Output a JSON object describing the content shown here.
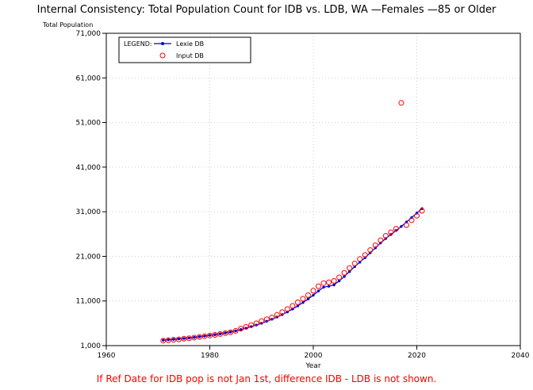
{
  "chart_data": {
    "type": "scatter",
    "title": "Internal Consistency: Total Population Count for IDB vs. LDB, WA —Females —85 or Older",
    "ylabel": "Total Population",
    "xlabel": "Year",
    "footnote": "If Ref Date for IDB pop is not Jan 1st, difference IDB - LDB is not shown.",
    "xlim": [
      1960,
      2040
    ],
    "ylim": [
      1000,
      71000
    ],
    "x_ticks": [
      1960,
      1980,
      2000,
      2020,
      2040
    ],
    "y_ticks": [
      1000,
      11000,
      21000,
      31000,
      41000,
      51000,
      61000,
      71000
    ],
    "x_tick_labels": [
      "1960",
      "1980",
      "2000",
      "2020",
      "2040"
    ],
    "y_tick_labels": [
      "1,000",
      "11,000",
      "21,000",
      "31,000",
      "41,000",
      "51,000",
      "61,000",
      "71,000"
    ],
    "grid": true,
    "legend": {
      "title": "LEGEND:",
      "placement": "top-left",
      "entries": [
        "Lexie DB",
        "Input DB"
      ]
    },
    "series": [
      {
        "name": "Lexie DB",
        "style": "line-with-dots",
        "color": "#0000cc",
        "x": [
          1971,
          1972,
          1973,
          1974,
          1975,
          1976,
          1977,
          1978,
          1979,
          1980,
          1981,
          1982,
          1983,
          1984,
          1985,
          1986,
          1987,
          1988,
          1989,
          1990,
          1991,
          1992,
          1993,
          1994,
          1995,
          1996,
          1997,
          1998,
          1999,
          2000,
          2001,
          2002,
          2003,
          2004,
          2005,
          2006,
          2007,
          2008,
          2009,
          2010,
          2011,
          2012,
          2013,
          2014,
          2015,
          2016,
          2017,
          2018,
          2019,
          2020,
          2021
        ],
        "y": [
          2200,
          2300,
          2400,
          2500,
          2600,
          2700,
          2850,
          3000,
          3150,
          3300,
          3450,
          3650,
          3850,
          4050,
          4300,
          4600,
          4900,
          5250,
          5600,
          6000,
          6450,
          6900,
          7400,
          7950,
          8550,
          9200,
          9900,
          10650,
          11450,
          12300,
          13250,
          14100,
          14300,
          14600,
          15500,
          16500,
          17600,
          18700,
          19700,
          20700,
          21800,
          22900,
          24000,
          25000,
          25900,
          26800,
          27700,
          28700,
          29700,
          30700,
          31700
        ]
      },
      {
        "name": "Input DB",
        "style": "open-circle",
        "color": "#ff0000",
        "x": [
          1971,
          1972,
          1973,
          1974,
          1975,
          1976,
          1977,
          1978,
          1979,
          1980,
          1981,
          1982,
          1983,
          1984,
          1985,
          1986,
          1987,
          1988,
          1989,
          1990,
          1991,
          1992,
          1993,
          1994,
          1995,
          1996,
          1997,
          1998,
          1999,
          2000,
          2001,
          2002,
          2003,
          2004,
          2005,
          2006,
          2007,
          2008,
          2009,
          2010,
          2011,
          2012,
          2013,
          2014,
          2015,
          2016,
          2017,
          2018,
          2019,
          2020,
          2021
        ],
        "y": [
          2100,
          2200,
          2300,
          2400,
          2550,
          2650,
          2800,
          2950,
          3100,
          3250,
          3400,
          3600,
          3800,
          4000,
          4300,
          4800,
          5200,
          5600,
          6000,
          6500,
          6900,
          7300,
          7900,
          8500,
          9200,
          9900,
          10700,
          11500,
          12300,
          13300,
          14300,
          15000,
          15200,
          15500,
          16300,
          17300,
          18400,
          19400,
          20400,
          21300,
          22400,
          23500,
          24600,
          25600,
          26400,
          27200,
          55400,
          28000,
          29100,
          30100,
          31200
        ]
      }
    ]
  }
}
